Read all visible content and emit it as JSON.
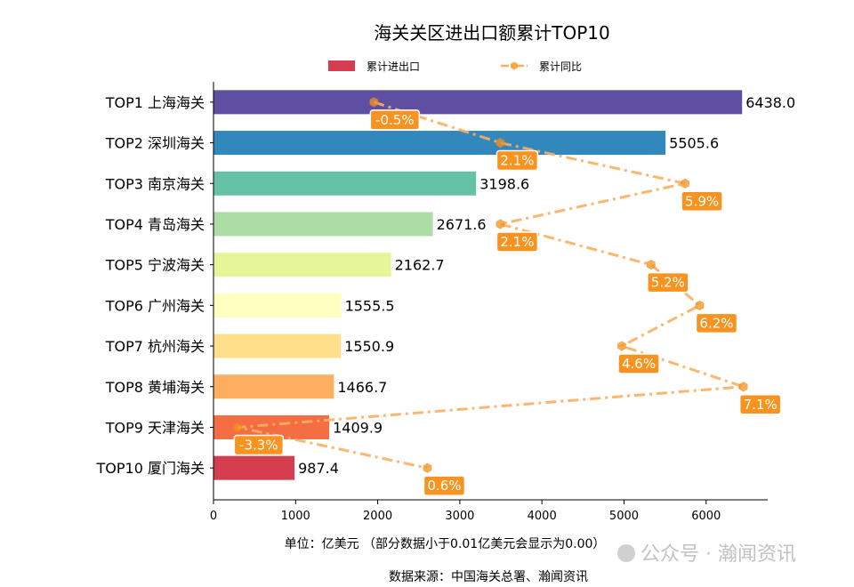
{
  "chart_data": {
    "type": "bar",
    "orientation": "horizontal",
    "title": "海关关区进出口额累计TOP10",
    "xlabel": "单位：亿美元  （部分数据小于0.01亿美元会显示为0.00）",
    "source": "数据来源：中国海关总署、瀚闻资讯",
    "watermark": "公众号 · 瀚闻资讯",
    "categories": [
      "TOP1 上海海关",
      "TOP2 深圳海关",
      "TOP3 南京海关",
      "TOP4 青岛海关",
      "TOP5 宁波海关",
      "TOP6 广州海关",
      "TOP7 杭州海关",
      "TOP8 黄埔海关",
      "TOP9 天津海关",
      "TOP10 厦门海关"
    ],
    "series": [
      {
        "name": "累计进出口",
        "type": "bar",
        "values": [
          6438.0,
          5505.6,
          3198.6,
          2671.6,
          2162.7,
          1555.5,
          1550.9,
          1466.7,
          1409.9,
          987.4
        ],
        "data_labels": [
          "6438.0",
          "5505.6",
          "3198.6",
          "2671.6",
          "2162.7",
          "1555.5",
          "1550.9",
          "1466.7",
          "1409.9",
          "987.4"
        ],
        "colors": [
          "#5e4fa2",
          "#3288bd",
          "#66c2a5",
          "#abdda4",
          "#e6f598",
          "#ffffbf",
          "#fee08b",
          "#fdae61",
          "#f46d43",
          "#d53e4f"
        ]
      },
      {
        "name": "累计同比",
        "type": "line",
        "unit": "%",
        "values": [
          -0.5,
          2.1,
          5.9,
          2.1,
          5.2,
          6.2,
          4.6,
          7.1,
          -3.3,
          0.6
        ],
        "data_labels": [
          "-0.5%",
          "2.1%",
          "5.9%",
          "2.1%",
          "5.2%",
          "6.2%",
          "4.6%",
          "7.1%",
          "-3.3%",
          "0.6%"
        ],
        "color": "#fdae61",
        "label_color": "#f7931e",
        "line_style": "dash-dot",
        "marker": "hexagon",
        "axis_hidden": true,
        "xlim": [
          -3.8,
          7.6
        ]
      }
    ],
    "xlim": [
      0,
      6750
    ],
    "xticks": [
      "0",
      "1000",
      "2000",
      "3000",
      "4000",
      "5000",
      "6000"
    ],
    "legend": {
      "placement": "top",
      "legend_bar_color": "#d53e4f"
    },
    "grid": false
  }
}
